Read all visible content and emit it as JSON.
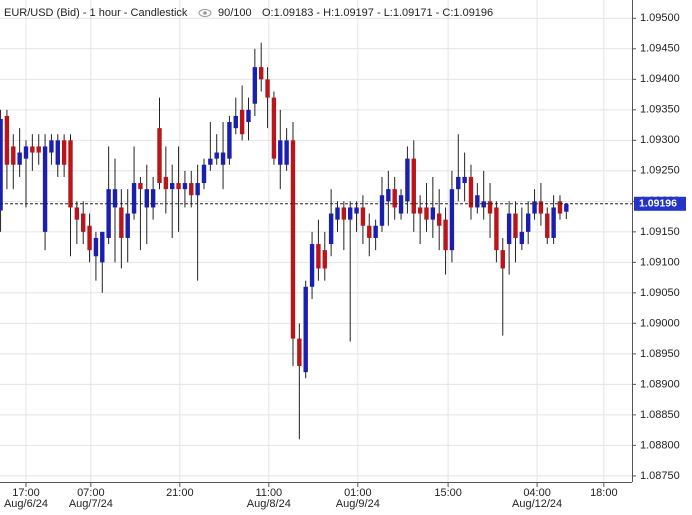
{
  "chart_data": {
    "type": "candlestick",
    "title": "EUR/USD (Bid) - 1 hour - Candlestick",
    "counter": "90/100",
    "header_info": "O:1.09183 - H:1.09197 - L:1.09171 - C:1.09196",
    "open": [
      1.09185,
      1.0934,
      1.0929,
      1.0926,
      1.0927,
      1.0929,
      1.0929,
      1.0915,
      1.0928,
      1.0926,
      1.093,
      1.093,
      1.0919,
      1.0918,
      1.0916,
      1.0911,
      1.091,
      1.0914,
      1.0919,
      1.0919,
      1.0914,
      1.0918,
      1.0923,
      1.0919,
      1.0919,
      1.0932,
      1.0924,
      1.0922,
      1.0923,
      1.0922,
      1.0923,
      1.0921,
      1.0923,
      1.0926,
      1.0927,
      1.0926,
      1.0927,
      1.0932,
      1.0935,
      1.0933,
      1.0936,
      1.0942,
      1.094,
      1.0937,
      1.0926,
      1.0926,
      1.093,
      1.08975,
      1.0892,
      1.0906,
      1.0913,
      1.0912,
      1.0913,
      1.0917,
      1.0919,
      1.0917,
      1.0918,
      1.0919,
      1.0916,
      1.0914,
      1.0916,
      1.092,
      1.0922,
      1.0918,
      1.092,
      1.0927,
      1.0919,
      1.0919,
      1.0917,
      1.0918,
      1.0917,
      1.0912,
      1.0922,
      1.0923,
      1.0924,
      1.0919,
      1.0919,
      1.092,
      1.0919,
      1.0912,
      1.0913,
      1.0918,
      1.0913,
      1.0915,
      1.0918,
      1.092,
      1.0918,
      1.0914,
      1.092,
      1.09183
    ],
    "high": [
      1.0935,
      1.0935,
      1.0931,
      1.0932,
      1.093,
      1.0931,
      1.0931,
      1.0931,
      1.0931,
      1.0931,
      1.0931,
      1.0931,
      1.092,
      1.092,
      1.0918,
      1.0915,
      1.0915,
      1.0929,
      1.0927,
      1.0922,
      1.0922,
      1.0929,
      1.0924,
      1.0926,
      1.0924,
      1.0937,
      1.0929,
      1.0926,
      1.0929,
      1.0925,
      1.0925,
      1.0926,
      1.0927,
      1.0933,
      1.0931,
      1.0933,
      1.0934,
      1.0937,
      1.0939,
      1.0937,
      1.0945,
      1.0946,
      1.0942,
      1.0938,
      1.0935,
      1.0932,
      1.0933,
      1.09,
      1.0907,
      1.0915,
      1.0917,
      1.0915,
      1.0922,
      1.092,
      1.092,
      1.092,
      1.092,
      1.0921,
      1.0918,
      1.0917,
      1.0924,
      1.0925,
      1.0924,
      1.0922,
      1.0929,
      1.093,
      1.0921,
      1.0923,
      1.0924,
      1.0922,
      1.0919,
      1.0925,
      1.0931,
      1.0928,
      1.0926,
      1.0923,
      1.0925,
      1.0923,
      1.092,
      1.0914,
      1.092,
      1.092,
      1.0919,
      1.092,
      1.0922,
      1.0923,
      1.0919,
      1.0921,
      1.0921,
      1.09197
    ],
    "low": [
      1.0915,
      1.0922,
      1.0922,
      1.0924,
      1.0919,
      1.0925,
      1.0926,
      1.0912,
      1.0926,
      1.0924,
      1.0924,
      1.0911,
      1.0913,
      1.0913,
      1.091,
      1.0907,
      1.0905,
      1.0913,
      1.091,
      1.0909,
      1.091,
      1.0917,
      1.0912,
      1.0913,
      1.0917,
      1.0922,
      1.0918,
      1.0914,
      1.0915,
      1.0919,
      1.0919,
      1.0907,
      1.0922,
      1.0925,
      1.0926,
      1.0922,
      1.0926,
      1.0931,
      1.093,
      1.093,
      1.0934,
      1.0938,
      1.0932,
      1.0926,
      1.0922,
      1.0925,
      1.0893,
      1.0881,
      1.0891,
      1.0904,
      1.0907,
      1.0907,
      1.0911,
      1.0915,
      1.0912,
      1.0897,
      1.0915,
      1.0913,
      1.0911,
      1.0912,
      1.0915,
      1.0916,
      1.0917,
      1.0917,
      1.0918,
      1.0915,
      1.0913,
      1.0915,
      1.0914,
      1.0912,
      1.0908,
      1.091,
      1.092,
      1.092,
      1.0917,
      1.0918,
      1.0917,
      1.0914,
      1.091,
      1.0898,
      1.0908,
      1.091,
      1.0912,
      1.0913,
      1.0917,
      1.0916,
      1.0913,
      1.0913,
      1.0917,
      1.09171
    ],
    "close": [
      1.09335,
      1.0926,
      1.0926,
      1.0928,
      1.0929,
      1.0928,
      1.0928,
      1.0929,
      1.093,
      1.093,
      1.0926,
      1.0919,
      1.0917,
      1.0915,
      1.0912,
      1.0914,
      1.0915,
      1.0922,
      1.0922,
      1.0914,
      1.0918,
      1.0923,
      1.0922,
      1.0922,
      1.0922,
      1.0923,
      1.0922,
      1.0923,
      1.0922,
      1.0923,
      1.0921,
      1.0923,
      1.0926,
      1.0927,
      1.0928,
      1.0928,
      1.0933,
      1.0934,
      1.0931,
      1.0935,
      1.0942,
      1.094,
      1.0937,
      1.0927,
      1.093,
      1.093,
      1.08975,
      1.0893,
      1.0906,
      1.0913,
      1.0909,
      1.0909,
      1.0918,
      1.0919,
      1.0917,
      1.0919,
      1.0919,
      1.0916,
      1.0914,
      1.0916,
      1.0921,
      1.0922,
      1.0919,
      1.0921,
      1.0927,
      1.0918,
      1.0918,
      1.0917,
      1.0919,
      1.0916,
      1.0912,
      1.0922,
      1.0924,
      1.0924,
      1.0919,
      1.0921,
      1.092,
      1.0918,
      1.0912,
      1.0909,
      1.0918,
      1.0914,
      1.0915,
      1.0918,
      1.092,
      1.0918,
      1.0914,
      1.0919,
      1.0918,
      1.09196
    ],
    "up_color": "#1b1fb0",
    "down_color": "#b8161b",
    "last_price": 1.09196,
    "ylim": [
      1.0874,
      1.0953
    ],
    "yticks": [
      {
        "value": 1.095,
        "label": "1.09500"
      },
      {
        "value": 1.0945,
        "label": "1.09450"
      },
      {
        "value": 1.094,
        "label": "1.09400"
      },
      {
        "value": 1.0935,
        "label": "1.09350"
      },
      {
        "value": 1.093,
        "label": "1.09300"
      },
      {
        "value": 1.0925,
        "label": "1.09250"
      },
      {
        "value": 1.092,
        "label": "1.09200"
      },
      {
        "value": 1.0915,
        "label": "1.09150"
      },
      {
        "value": 1.091,
        "label": "1.09100"
      },
      {
        "value": 1.0905,
        "label": "1.09050"
      },
      {
        "value": 1.09,
        "label": "1.09000"
      },
      {
        "value": 1.0895,
        "label": "1.08950"
      },
      {
        "value": 1.089,
        "label": "1.08900"
      },
      {
        "value": 1.0885,
        "label": "1.08850"
      },
      {
        "value": 1.088,
        "label": "1.08800"
      },
      {
        "value": 1.0875,
        "label": "1.08750"
      }
    ],
    "xlim": [
      -0.09,
      99.33
    ],
    "xticks": [
      {
        "value": 4,
        "label": "17:00",
        "date": "Aug/6/24"
      },
      {
        "value": 14.2,
        "label": "07:00",
        "date": "Aug/7/24"
      },
      {
        "value": 28.2,
        "label": "21:00"
      },
      {
        "value": 42.2,
        "label": "11:00",
        "date": "Aug/8/24"
      },
      {
        "value": 56.2,
        "label": "01:00",
        "date": "Aug/9/24"
      },
      {
        "value": 70.4,
        "label": "15:00"
      },
      {
        "value": 84.4,
        "label": "04:00",
        "date": "Aug/12/24"
      },
      {
        "value": 94.9,
        "label": "18:00"
      }
    ],
    "grid": true
  }
}
